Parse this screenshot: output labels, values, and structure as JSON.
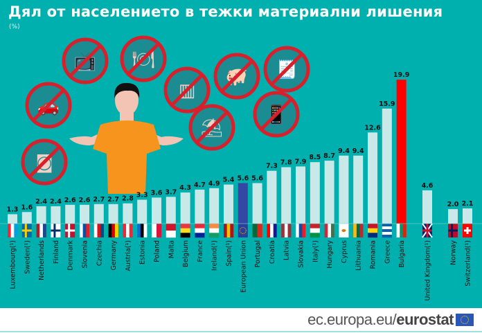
{
  "header": {
    "title": "Дял от населението в тежки материални лишения",
    "unit": "(%)"
  },
  "illustration": {
    "items": [
      "tv-icon",
      "meal-icon",
      "car-icon",
      "radiator-icon",
      "piggy-bank-icon",
      "bills-icon",
      "beach-holiday-icon",
      "phone-icon",
      "washing-machine-icon",
      "shrugging-person-icon"
    ]
  },
  "footer": {
    "source_prefix": "ec.europa.eu/",
    "source_bold": "eurostat"
  },
  "colors": {
    "background": "#00b0ae",
    "bar": "#c8e9e8",
    "eu_bar": "#3447a3",
    "highlight_bar": "#ff0000",
    "label": "#111111"
  },
  "chart_data": {
    "type": "bar",
    "title": "Дял от населението в тежки материални лишения",
    "ylabel": "(%)",
    "xlabel": "",
    "ylim": [
      0,
      20
    ],
    "grid": false,
    "legend": "none",
    "groups": [
      {
        "name": "EU",
        "categories": [
          "Luxembourg(¹)",
          "Sweden(¹)",
          "Netherlands",
          "Finland",
          "Denmark",
          "Slovenia",
          "Czechia",
          "Germany",
          "Austria(¹)",
          "Estonia",
          "Poland",
          "Malta",
          "Belgium",
          "France",
          "Ireland(¹)",
          "Spain(¹)",
          "European Union",
          "Portugal",
          "Croatia",
          "Latvia",
          "Slovakia",
          "Italy(¹)",
          "Hungary",
          "Cyprus",
          "Lithuania",
          "Romania",
          "Greece",
          "Bulgaria"
        ],
        "values": [
          1.3,
          1.6,
          2.4,
          2.4,
          2.6,
          2.6,
          2.7,
          2.7,
          2.8,
          3.3,
          3.6,
          3.7,
          4.3,
          4.7,
          4.9,
          5.4,
          5.6,
          5.6,
          7.3,
          7.8,
          7.9,
          8.5,
          8.7,
          9.4,
          9.4,
          12.6,
          15.9,
          19.9
        ],
        "labels": [
          "1.3",
          "1.6",
          "2.4",
          "2.4",
          "2.6",
          "2.6",
          "2.7",
          "2.7",
          "2.8",
          "3.3",
          "3.6",
          "3.7",
          "4.3",
          "4.7",
          "4.9",
          "5.4",
          "5.6",
          "5.6",
          "7.3",
          "7.8",
          "7.9",
          "8.5",
          "8.7",
          "9.4",
          "9.4",
          "12.6",
          "15.9",
          "19.9"
        ],
        "flags": [
          "LU",
          "SE",
          "NL",
          "FI",
          "DK",
          "SI",
          "CZ",
          "DE",
          "AT",
          "EE",
          "PL",
          "MT",
          "BE",
          "FR",
          "IE",
          "ES",
          "EU",
          "PT",
          "HR",
          "LV",
          "SK",
          "IT",
          "HU",
          "CY",
          "LT",
          "RO",
          "GR",
          "BG"
        ]
      },
      {
        "name": "Non-EU",
        "categories": [
          "United Kingdom(¹)",
          "Norway",
          "Switzerland(¹)"
        ],
        "values": [
          4.6,
          2.0,
          2.1
        ],
        "labels": [
          "4.6",
          "2.0",
          "2.1"
        ],
        "flags": [
          "UK",
          "NO",
          "CH"
        ]
      }
    ],
    "highlight": {
      "European Union": "eu",
      "Bulgaria": "highlight"
    }
  }
}
